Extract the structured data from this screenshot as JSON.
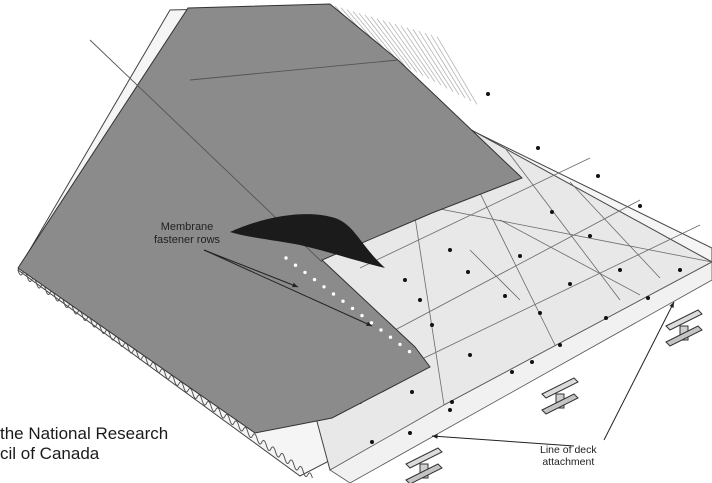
{
  "labels": {
    "membrane_fastener_rows": [
      "Membrane",
      "fastener rows"
    ],
    "line_of_deck_attachment": [
      "Line of deck",
      "attachment"
    ]
  },
  "credit": [
    "the National Research",
    "cil of Canada"
  ],
  "colors": {
    "membrane": "#8b8b8b",
    "insulation_board": "#e6e6e6",
    "steel_deck": "#f4f4f4",
    "outline": "#3a3a3a",
    "fastener_plate": "#111111"
  }
}
